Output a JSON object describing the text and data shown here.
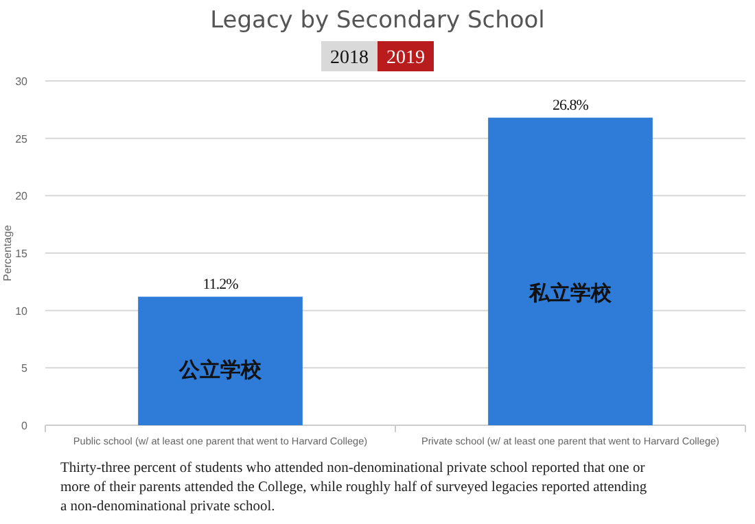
{
  "chart_data": {
    "type": "bar",
    "title": "Legacy by Secondary School",
    "ylabel": "Percentage",
    "categories": [
      "Public school (w/ at least one parent that went to Harvard College)",
      "Private school (w/ at least one parent that went to Harvard College)"
    ],
    "values": [
      11.2,
      26.8
    ],
    "color": "#2f7bd8",
    "value_labels": [
      "11.2%",
      "26.8%"
    ],
    "ylim": [
      0,
      30
    ],
    "yticks": [
      0,
      5,
      10,
      15,
      20,
      25,
      30
    ],
    "grid": "y",
    "annotations": [
      "2018",
      "2019",
      "公立学校",
      "私立学校",
      "Thirty-three percent of students who attended non-denominational private school reported that one or more of their parents attended the College, while roughly half of surveyed legacies reported attending a non-denominational private school."
    ]
  }
}
